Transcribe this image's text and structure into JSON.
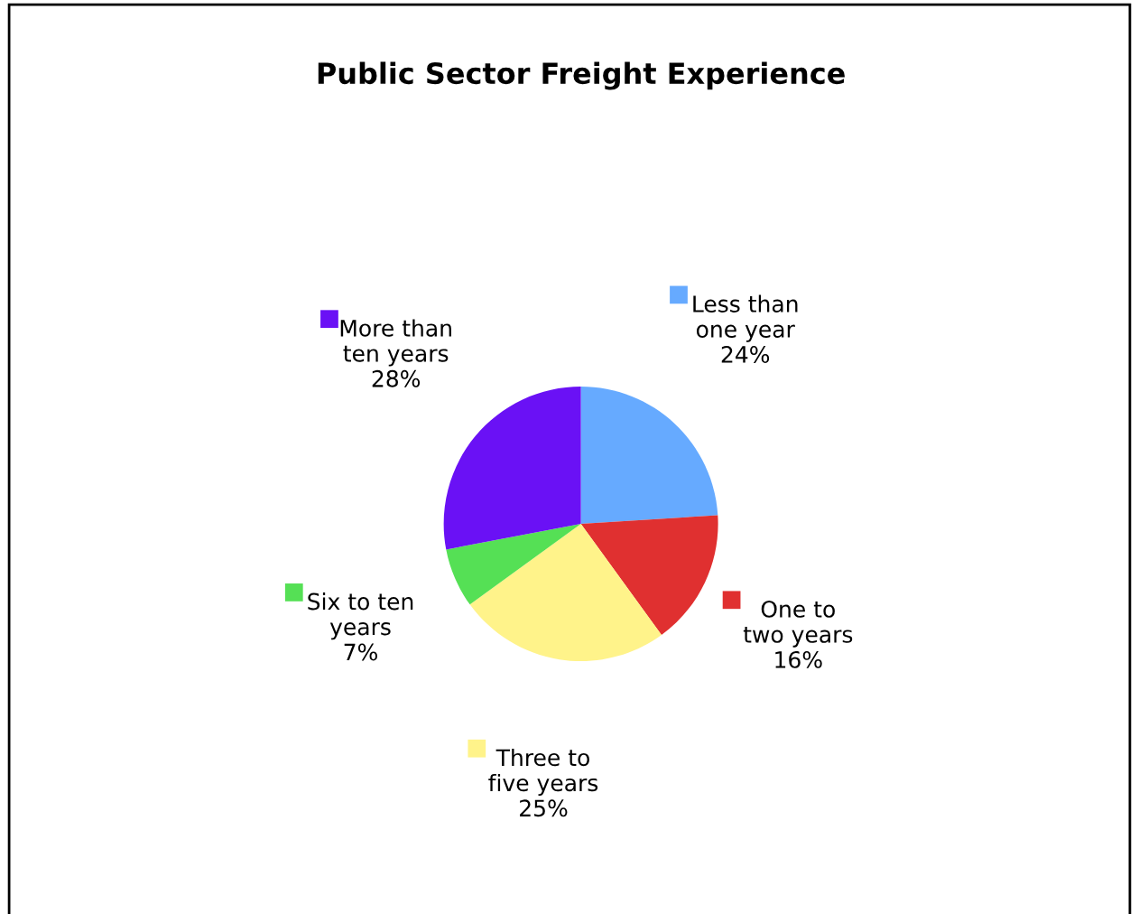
{
  "chart_data": {
    "type": "pie",
    "title": "Public Sector Freight Experience",
    "categories": [
      "Less than\none year",
      "One to\ntwo years",
      "Three to\nfive years",
      "Six to ten\nyears",
      "More than\nten years"
    ],
    "values": [
      24,
      16,
      25,
      7,
      28
    ],
    "colors": [
      "#66aaff",
      "#e03030",
      "#fff38a",
      "#55e055",
      "#6a11f5"
    ],
    "value_labels": [
      "24%",
      "16%",
      "25%",
      "7%",
      "28%"
    ],
    "legend": "right"
  }
}
